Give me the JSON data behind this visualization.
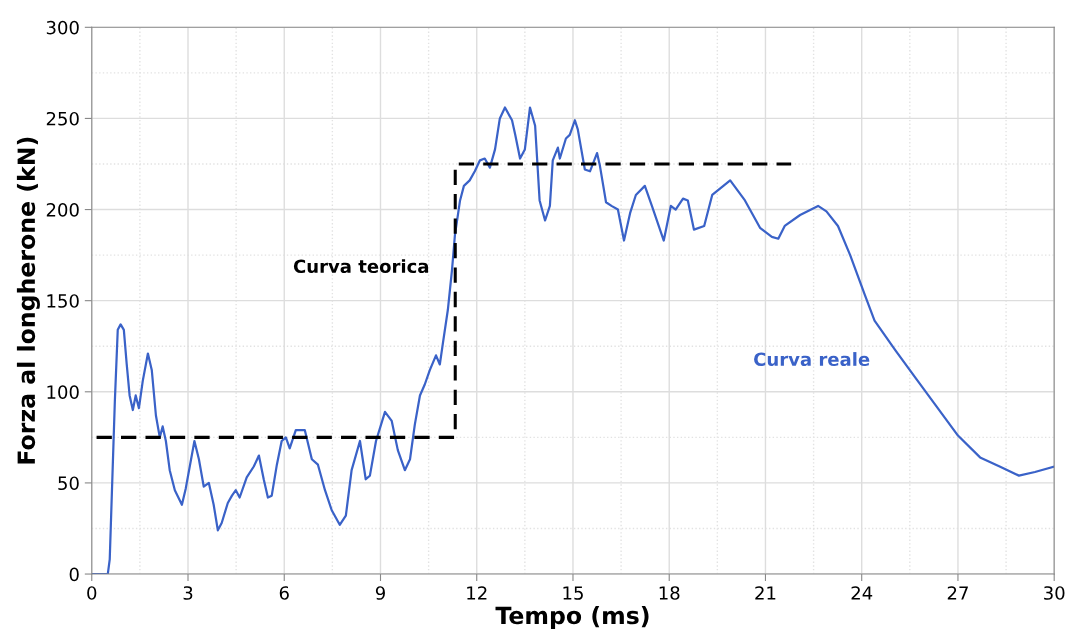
{
  "chart_data": {
    "type": "line",
    "xlabel": "Tempo (ms)",
    "ylabel": "Forza al longherone (kN)",
    "xlim": [
      0,
      30
    ],
    "xticks": [
      0,
      3,
      6,
      9,
      12,
      15,
      18,
      21,
      24,
      27,
      30
    ],
    "ylim": [
      0,
      300
    ],
    "yticks": [
      0,
      50,
      100,
      150,
      200,
      250,
      300
    ],
    "grid": true,
    "legend": false,
    "marker": "none",
    "series": [
      {
        "name": "Curva teorica",
        "color": "#000000",
        "line_style": "dashed",
        "x": [
          0.15,
          11.33,
          11.33,
          21.8
        ],
        "values": [
          75,
          75,
          225,
          225
        ]
      },
      {
        "name": "Curva reale",
        "color": "#3a62c8",
        "line_style": "solid",
        "x": [
          0,
          0.5,
          0.56,
          0.72,
          0.81,
          0.9,
          1.0,
          1.09,
          1.18,
          1.28,
          1.37,
          1.47,
          1.59,
          1.75,
          1.87,
          2.0,
          2.12,
          2.21,
          2.31,
          2.43,
          2.59,
          2.81,
          2.93,
          3.2,
          3.34,
          3.49,
          3.65,
          3.8,
          3.93,
          4.05,
          4.24,
          4.37,
          4.49,
          4.61,
          4.83,
          5.05,
          5.21,
          5.36,
          5.49,
          5.61,
          5.77,
          5.92,
          6.05,
          6.17,
          6.36,
          6.64,
          6.86,
          7.05,
          7.27,
          7.48,
          7.73,
          7.92,
          8.1,
          8.36,
          8.54,
          8.67,
          8.86,
          9.14,
          9.35,
          9.54,
          9.76,
          9.92,
          10.07,
          10.23,
          10.38,
          10.54,
          10.73,
          10.85,
          10.94,
          11.1,
          11.23,
          11.32,
          11.48,
          11.6,
          11.78,
          11.94,
          12.1,
          12.25,
          12.41,
          12.57,
          12.72,
          12.88,
          13.1,
          13.2,
          13.35,
          13.5,
          13.66,
          13.82,
          13.96,
          14.13,
          14.28,
          14.37,
          14.53,
          14.59,
          14.78,
          14.9,
          15.06,
          15.15,
          15.37,
          15.53,
          15.75,
          15.84,
          16.03,
          16.2,
          16.4,
          16.59,
          16.78,
          16.96,
          17.24,
          17.46,
          17.83,
          18.05,
          18.2,
          18.43,
          18.58,
          18.77,
          19.09,
          19.34,
          19.9,
          20.36,
          20.83,
          21.2,
          21.4,
          21.6,
          22.08,
          22.64,
          22.9,
          23.26,
          23.64,
          24.1,
          24.4,
          25.04,
          25.66,
          26.29,
          27.0,
          27.69,
          28.3,
          28.9,
          29.4,
          30
        ],
        "values": [
          0,
          0,
          8,
          95,
          134,
          137,
          134,
          115,
          98,
          90,
          98,
          91,
          106,
          121,
          112,
          87,
          75,
          81,
          73,
          57,
          46,
          38,
          47,
          73,
          63,
          48,
          50,
          38,
          24,
          28,
          39,
          43,
          46,
          42,
          53,
          59,
          65,
          52,
          42,
          43,
          60,
          73,
          75,
          69,
          79,
          79,
          63,
          60,
          46,
          35,
          27,
          32,
          57,
          73,
          52,
          54,
          73,
          89,
          84,
          68,
          57,
          63,
          82,
          98,
          104,
          112,
          120,
          115,
          126,
          145,
          167,
          186,
          205,
          213,
          216,
          221,
          227,
          228,
          223,
          233,
          250,
          256,
          249,
          241,
          228,
          233,
          256,
          246,
          205,
          194,
          202,
          227,
          234,
          228,
          239,
          241,
          249,
          244,
          222,
          221,
          231,
          224,
          204,
          202,
          200,
          183,
          198,
          208,
          213,
          202,
          183,
          202,
          200,
          206,
          205,
          189,
          191,
          208,
          216,
          205,
          190,
          185,
          184,
          191,
          197,
          202,
          199,
          191,
          175,
          153,
          139,
          123,
          108,
          93,
          76,
          64,
          59,
          54,
          56,
          59
        ]
      }
    ]
  }
}
